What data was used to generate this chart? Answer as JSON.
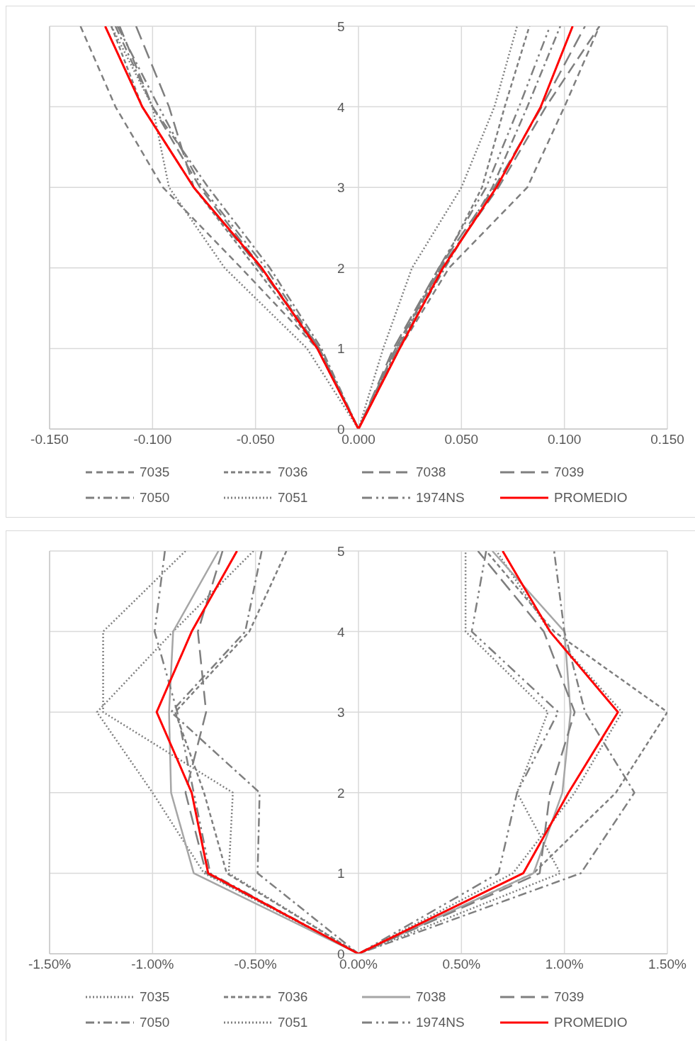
{
  "chart_data": [
    {
      "type": "line",
      "legend": "bottom",
      "grid": true,
      "xlim": [
        -0.15,
        0.15
      ],
      "xticks": [
        {
          "value": -0.15,
          "label": "-0.150"
        },
        {
          "value": -0.1,
          "label": "-0.100"
        },
        {
          "value": -0.05,
          "label": "-0.050"
        },
        {
          "value": 0,
          "label": "0.000"
        },
        {
          "value": 0.05,
          "label": "0.050"
        },
        {
          "value": 0.1,
          "label": "0.100"
        },
        {
          "value": 0.15,
          "label": "0.150"
        }
      ],
      "ylim": [
        0,
        5
      ],
      "yticks": [
        0,
        1,
        2,
        3,
        4,
        5
      ],
      "series": [
        {
          "name": "7035",
          "color": "#7f7f7f",
          "line_style": "dashed",
          "x": [
            -0.135,
            -0.118,
            -0.095,
            -0.057,
            -0.02,
            0,
            0.02,
            0.044,
            0.082,
            0.1,
            0.117
          ],
          "values": [
            5,
            4,
            3,
            2,
            1,
            0,
            1,
            2,
            3,
            4,
            5
          ]
        },
        {
          "name": "7036",
          "color": "#7f7f7f",
          "line_style": "dashed",
          "x": [
            -0.12,
            -0.105,
            -0.08,
            -0.05,
            -0.02,
            0,
            0.019,
            0.04,
            0.06,
            0.071,
            0.083
          ],
          "values": [
            5,
            4,
            3,
            2,
            1,
            0,
            1,
            2,
            3,
            4,
            5
          ]
        },
        {
          "name": "7038",
          "color": "#7f7f7f",
          "line_style": "dashed",
          "x": [
            -0.116,
            -0.1,
            -0.077,
            -0.047,
            -0.019,
            0,
            0.018,
            0.04,
            0.068,
            0.091,
            0.117
          ],
          "values": [
            5,
            4,
            3,
            2,
            1,
            0,
            1,
            2,
            3,
            4,
            5
          ]
        },
        {
          "name": "7039",
          "color": "#7f7f7f",
          "line_style": "dashed",
          "x": [
            -0.108,
            -0.092,
            -0.08,
            -0.048,
            -0.019,
            0,
            0.017,
            0.039,
            0.066,
            0.089,
            0.11
          ],
          "values": [
            5,
            4,
            3,
            2,
            1,
            0,
            1,
            2,
            3,
            4,
            5
          ]
        },
        {
          "name": "7050",
          "color": "#7f7f7f",
          "line_style": "dashed",
          "x": [
            -0.118,
            -0.1,
            -0.073,
            -0.043,
            -0.018,
            0,
            0.019,
            0.042,
            0.065,
            0.082,
            0.098
          ],
          "values": [
            5,
            4,
            3,
            2,
            1,
            0,
            1,
            2,
            3,
            4,
            5
          ]
        },
        {
          "name": "7051",
          "color": "#7f7f7f",
          "line_style": "dotted",
          "x": [
            -0.12,
            -0.1,
            -0.092,
            -0.065,
            -0.025,
            0,
            0.012,
            0.026,
            0.05,
            0.066,
            0.077
          ],
          "values": [
            5,
            4,
            3,
            2,
            1,
            0,
            1,
            2,
            3,
            4,
            5
          ]
        },
        {
          "name": "1974NS",
          "color": "#7f7f7f",
          "line_style": "dashed",
          "x": [
            -0.117,
            -0.097,
            -0.076,
            -0.045,
            -0.019,
            0,
            0.018,
            0.039,
            0.062,
            0.078,
            0.093
          ],
          "values": [
            5,
            4,
            3,
            2,
            1,
            0,
            1,
            2,
            3,
            4,
            5
          ]
        },
        {
          "name": "PROMEDIO",
          "color": "#ff0000",
          "line_style": "solid",
          "x": [
            -0.123,
            -0.105,
            -0.08,
            -0.047,
            -0.02,
            0,
            0.02,
            0.041,
            0.067,
            0.0885,
            0.104
          ],
          "values": [
            5,
            4,
            3,
            2,
            1,
            0,
            1,
            2,
            3,
            4,
            5
          ]
        }
      ]
    },
    {
      "type": "line",
      "legend": "bottom",
      "grid": true,
      "xlim": [
        -1.5,
        1.5
      ],
      "xticks": [
        {
          "value": -1.5,
          "label": "-1.50%"
        },
        {
          "value": -1,
          "label": "-1.00%"
        },
        {
          "value": -0.5,
          "label": "-0.50%"
        },
        {
          "value": 0,
          "label": "0.00%"
        },
        {
          "value": 0.5,
          "label": "0.50%"
        },
        {
          "value": 1,
          "label": "1.00%"
        },
        {
          "value": 1.5,
          "label": "1.50%"
        }
      ],
      "ylim": [
        0,
        5
      ],
      "yticks": [
        0,
        1,
        2,
        3,
        4,
        5
      ],
      "series": [
        {
          "name": "7035",
          "color": "#7f7f7f",
          "line_style": "dotted",
          "x": [
            -0.51,
            -0.9,
            -1.27,
            -1.0,
            -0.75,
            0,
            0.75,
            1.05,
            1.28,
            0.93,
            0.67
          ],
          "values": [
            5,
            4,
            3,
            2,
            1,
            0,
            1,
            2,
            3,
            4,
            5
          ]
        },
        {
          "name": "7036",
          "color": "#7f7f7f",
          "line_style": "dashed",
          "x": [
            -0.35,
            -0.53,
            -0.89,
            -0.75,
            -0.64,
            0,
            0.85,
            1.25,
            1.5,
            0.95,
            0.62
          ],
          "values": [
            5,
            4,
            3,
            2,
            1,
            0,
            1,
            2,
            3,
            4,
            5
          ]
        },
        {
          "name": "7038",
          "color": "#a6a6a6",
          "line_style": "solid",
          "x": [
            -0.68,
            -0.9,
            -0.92,
            -0.91,
            -0.8,
            0,
            0.85,
            0.99,
            1.03,
            1.0,
            0.65
          ],
          "values": [
            5,
            4,
            3,
            2,
            1,
            0,
            1,
            2,
            3,
            4,
            5
          ]
        },
        {
          "name": "7039",
          "color": "#7f7f7f",
          "line_style": "dashed",
          "x": [
            -0.66,
            -0.78,
            -0.74,
            -0.84,
            -0.74,
            0,
            0.88,
            0.93,
            1.05,
            0.9,
            0.58
          ],
          "values": [
            5,
            4,
            3,
            2,
            1,
            0,
            1,
            2,
            3,
            4,
            5
          ]
        },
        {
          "name": "7050",
          "color": "#7f7f7f",
          "line_style": "dashed",
          "x": [
            -0.47,
            -0.55,
            -0.91,
            -0.48,
            -0.49,
            0,
            1.08,
            1.34,
            1.1,
            1.0,
            0.95
          ],
          "values": [
            5,
            4,
            3,
            2,
            1,
            0,
            1,
            2,
            3,
            4,
            5
          ]
        },
        {
          "name": "7051",
          "color": "#7f7f7f",
          "line_style": "dashed",
          "x": [
            -0.84,
            -1.24,
            -1.24,
            -0.61,
            -0.63,
            0,
            0.98,
            0.77,
            0.92,
            0.52,
            0.52
          ],
          "values": [
            5,
            4,
            3,
            2,
            1,
            0,
            1,
            2,
            3,
            4,
            5
          ]
        },
        {
          "name": "1974NS",
          "color": "#7f7f7f",
          "line_style": "dashed",
          "x": [
            -0.94,
            -0.99,
            -0.88,
            -0.8,
            -0.72,
            0,
            0.68,
            0.77,
            0.97,
            0.55,
            0.62
          ],
          "values": [
            5,
            4,
            3,
            2,
            1,
            0,
            1,
            2,
            3,
            4,
            5
          ]
        },
        {
          "name": "PROMEDIO",
          "color": "#ff0000",
          "line_style": "solid",
          "x": [
            -0.59,
            -0.81,
            -0.98,
            -0.81,
            -0.73,
            0,
            0.8,
            1.02,
            1.26,
            0.93,
            0.7
          ],
          "values": [
            5,
            4,
            3,
            2,
            1,
            0,
            1,
            2,
            3,
            4,
            5
          ]
        }
      ]
    }
  ]
}
